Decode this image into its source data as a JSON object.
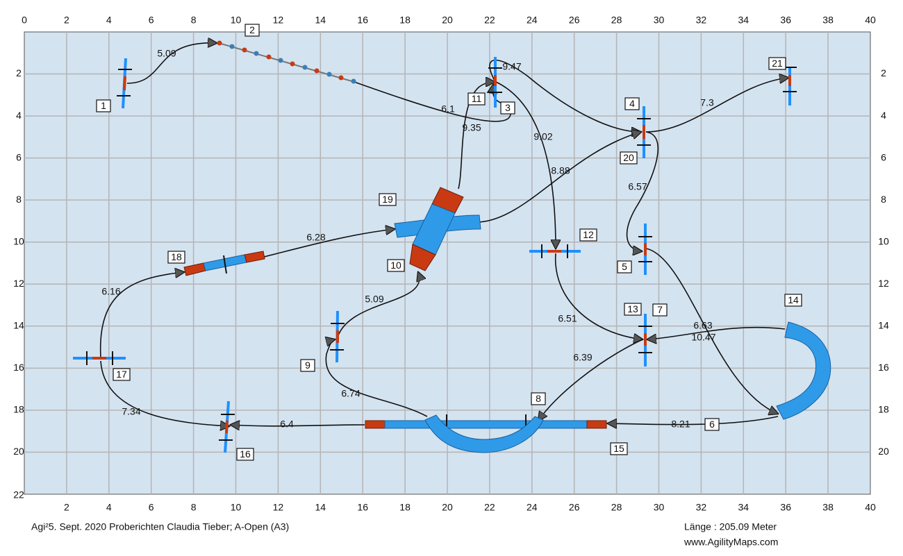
{
  "grid": {
    "x_ticks": [
      0,
      2,
      4,
      6,
      8,
      10,
      12,
      14,
      16,
      18,
      20,
      22,
      24,
      26,
      28,
      30,
      32,
      34,
      36,
      38,
      40
    ],
    "y_ticks": [
      2,
      4,
      6,
      8,
      10,
      12,
      14,
      16,
      18,
      20,
      22
    ]
  },
  "obstacles": [
    "1",
    "2",
    "3",
    "4",
    "5",
    "6",
    "7",
    "8",
    "9",
    "10",
    "11",
    "12",
    "13",
    "14",
    "15",
    "16",
    "17",
    "18",
    "19",
    "20",
    "21"
  ],
  "distances": [
    "5.09",
    "6.1",
    "9.35",
    "9.47",
    "9.02",
    "8.88",
    "7.3",
    "6.57",
    "6.28",
    "6.16",
    "5.09",
    "6.51",
    "6.63",
    "10.47",
    "6.39",
    "6.74",
    "7.34",
    "6.4",
    "8.21"
  ],
  "footer": {
    "left": "Agi²5. Sept. 2020 Proberichten Claudia Tieber; A-Open (A3)",
    "length": "Länge : 205.09 Meter",
    "site": "www.AgilityMaps.com"
  }
}
